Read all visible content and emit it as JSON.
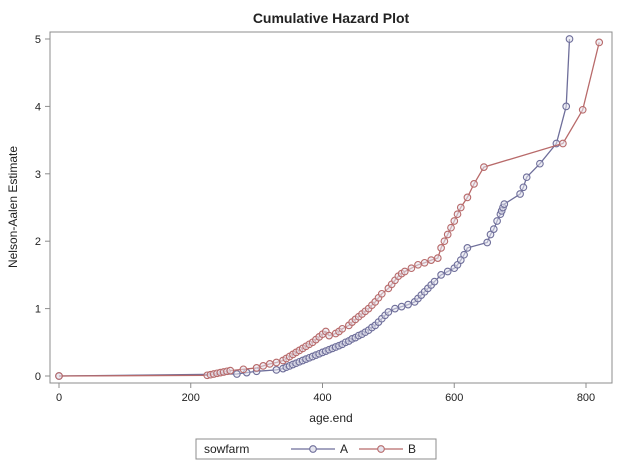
{
  "chart_data": {
    "type": "line",
    "title": "Cumulative Hazard Plot",
    "xlabel": "age.end",
    "ylabel": "Nelson-Aalen Estimate",
    "xlim": [
      -10,
      830
    ],
    "ylim": [
      -0.2,
      5.1
    ],
    "x_ticks": [
      0,
      200,
      400,
      600,
      800
    ],
    "y_ticks": [
      0,
      1,
      2,
      3,
      4,
      5
    ],
    "grid": false,
    "legend": {
      "title": "sowfarm",
      "position": "bottom"
    },
    "series": [
      {
        "name": "A",
        "color": "#6e6e9a",
        "marker": "circle",
        "x": [
          0,
          270,
          285,
          300,
          330,
          340,
          345,
          350,
          355,
          360,
          365,
          370,
          375,
          380,
          385,
          390,
          395,
          400,
          405,
          410,
          415,
          420,
          425,
          430,
          435,
          440,
          445,
          450,
          455,
          460,
          465,
          470,
          475,
          480,
          485,
          490,
          495,
          500,
          510,
          520,
          530,
          540,
          545,
          550,
          555,
          560,
          565,
          570,
          580,
          590,
          600,
          605,
          610,
          615,
          620,
          650,
          655,
          660,
          665,
          670,
          672,
          674,
          676,
          700,
          705,
          710,
          730,
          755,
          770,
          775
        ],
        "y": [
          0,
          0.03,
          0.05,
          0.07,
          0.09,
          0.11,
          0.13,
          0.15,
          0.17,
          0.19,
          0.21,
          0.23,
          0.25,
          0.27,
          0.29,
          0.31,
          0.33,
          0.35,
          0.37,
          0.39,
          0.41,
          0.43,
          0.45,
          0.47,
          0.5,
          0.52,
          0.55,
          0.57,
          0.6,
          0.62,
          0.65,
          0.68,
          0.72,
          0.75,
          0.8,
          0.85,
          0.9,
          0.95,
          1.0,
          1.03,
          1.06,
          1.1,
          1.15,
          1.2,
          1.25,
          1.3,
          1.35,
          1.4,
          1.5,
          1.55,
          1.6,
          1.65,
          1.72,
          1.8,
          1.9,
          1.98,
          2.1,
          2.18,
          2.3,
          2.4,
          2.45,
          2.5,
          2.55,
          2.7,
          2.8,
          2.95,
          3.15,
          3.45,
          4.0,
          5.0
        ]
      },
      {
        "name": "B",
        "color": "#b86a6a",
        "marker": "circle",
        "x": [
          0,
          225,
          230,
          235,
          240,
          245,
          250,
          255,
          260,
          280,
          300,
          310,
          320,
          330,
          340,
          345,
          350,
          355,
          360,
          365,
          370,
          375,
          380,
          385,
          390,
          395,
          400,
          405,
          410,
          420,
          425,
          430,
          440,
          445,
          450,
          455,
          460,
          465,
          470,
          475,
          480,
          485,
          490,
          500,
          505,
          510,
          515,
          520,
          525,
          535,
          545,
          555,
          565,
          575,
          580,
          585,
          590,
          595,
          600,
          605,
          610,
          620,
          630,
          645,
          765,
          795,
          820
        ],
        "y": [
          0,
          0.01,
          0.02,
          0.03,
          0.04,
          0.05,
          0.06,
          0.07,
          0.08,
          0.1,
          0.12,
          0.15,
          0.18,
          0.2,
          0.23,
          0.26,
          0.29,
          0.32,
          0.35,
          0.38,
          0.41,
          0.44,
          0.47,
          0.5,
          0.54,
          0.58,
          0.62,
          0.66,
          0.6,
          0.63,
          0.66,
          0.7,
          0.75,
          0.8,
          0.84,
          0.88,
          0.92,
          0.96,
          1.0,
          1.05,
          1.1,
          1.16,
          1.22,
          1.3,
          1.36,
          1.42,
          1.48,
          1.52,
          1.55,
          1.6,
          1.65,
          1.68,
          1.72,
          1.75,
          1.9,
          2.0,
          2.1,
          2.2,
          2.3,
          2.4,
          2.5,
          2.65,
          2.85,
          3.1,
          3.45,
          3.95,
          4.95
        ]
      }
    ]
  }
}
